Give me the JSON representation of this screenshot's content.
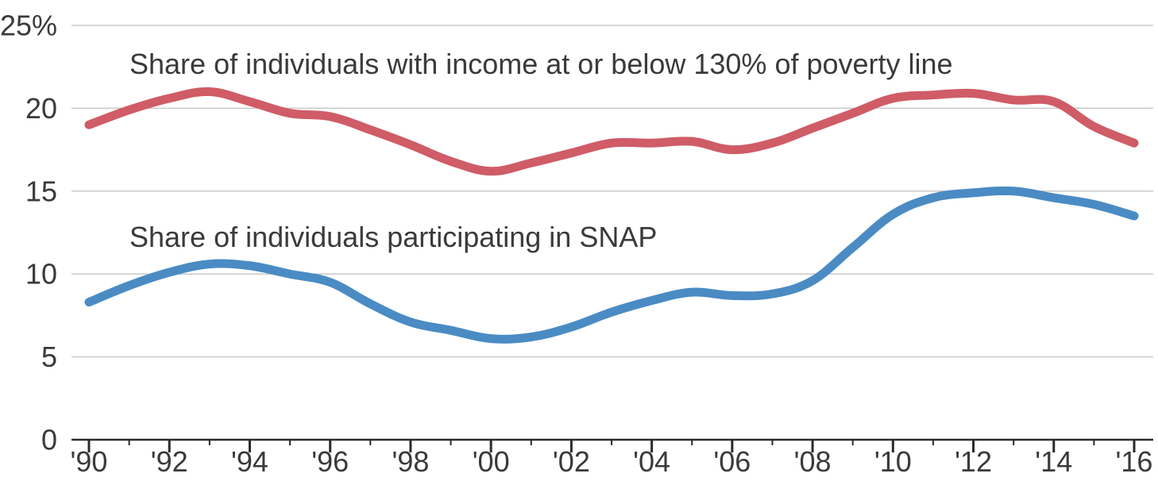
{
  "chart_data": {
    "type": "line",
    "x": [
      1990,
      1991,
      1992,
      1993,
      1994,
      1995,
      1996,
      1997,
      1998,
      1999,
      2000,
      2001,
      2002,
      2003,
      2004,
      2005,
      2006,
      2007,
      2008,
      2009,
      2010,
      2011,
      2012,
      2013,
      2014,
      2015,
      2016
    ],
    "x_ticks": [
      1990,
      1992,
      1994,
      1996,
      1998,
      2000,
      2002,
      2004,
      2006,
      2008,
      2010,
      2012,
      2014,
      2016
    ],
    "x_tick_labels": [
      "'90",
      "'92",
      "'94",
      "'96",
      "'98",
      "'00",
      "'02",
      "'04",
      "'06",
      "'08",
      "'10",
      "'12",
      "'14",
      "'16"
    ],
    "xlim": [
      1990,
      2016
    ],
    "ylim": [
      0,
      25
    ],
    "y_ticks": [
      0,
      5,
      10,
      15,
      20,
      25
    ],
    "y_tick_labels": [
      "0",
      "5",
      "10",
      "15",
      "20",
      "25%"
    ],
    "grid": "horizontal",
    "xlabel": "",
    "ylabel": "",
    "series": [
      {
        "name": "Share of individuals with income at or below 130% of poverty line",
        "color": "#cf5c66",
        "values": [
          19.0,
          19.9,
          20.6,
          21.0,
          20.4,
          19.7,
          19.5,
          18.7,
          17.8,
          16.8,
          16.2,
          16.7,
          17.3,
          17.9,
          17.9,
          18.0,
          17.5,
          17.9,
          18.8,
          19.7,
          20.6,
          20.8,
          20.9,
          20.5,
          20.4,
          18.9,
          17.9
        ]
      },
      {
        "name": "Share of individuals participating in SNAP",
        "color": "#4a8bc4",
        "values": [
          8.3,
          9.3,
          10.1,
          10.6,
          10.5,
          10.0,
          9.5,
          8.2,
          7.1,
          6.6,
          6.1,
          6.2,
          6.8,
          7.7,
          8.4,
          8.9,
          8.7,
          8.8,
          9.6,
          11.6,
          13.6,
          14.6,
          14.9,
          15.0,
          14.6,
          14.2,
          13.5
        ]
      }
    ],
    "axis_color": "#2a2a2a",
    "grid_color": "#c9c9c9",
    "text_color": "#3a3a3a"
  }
}
